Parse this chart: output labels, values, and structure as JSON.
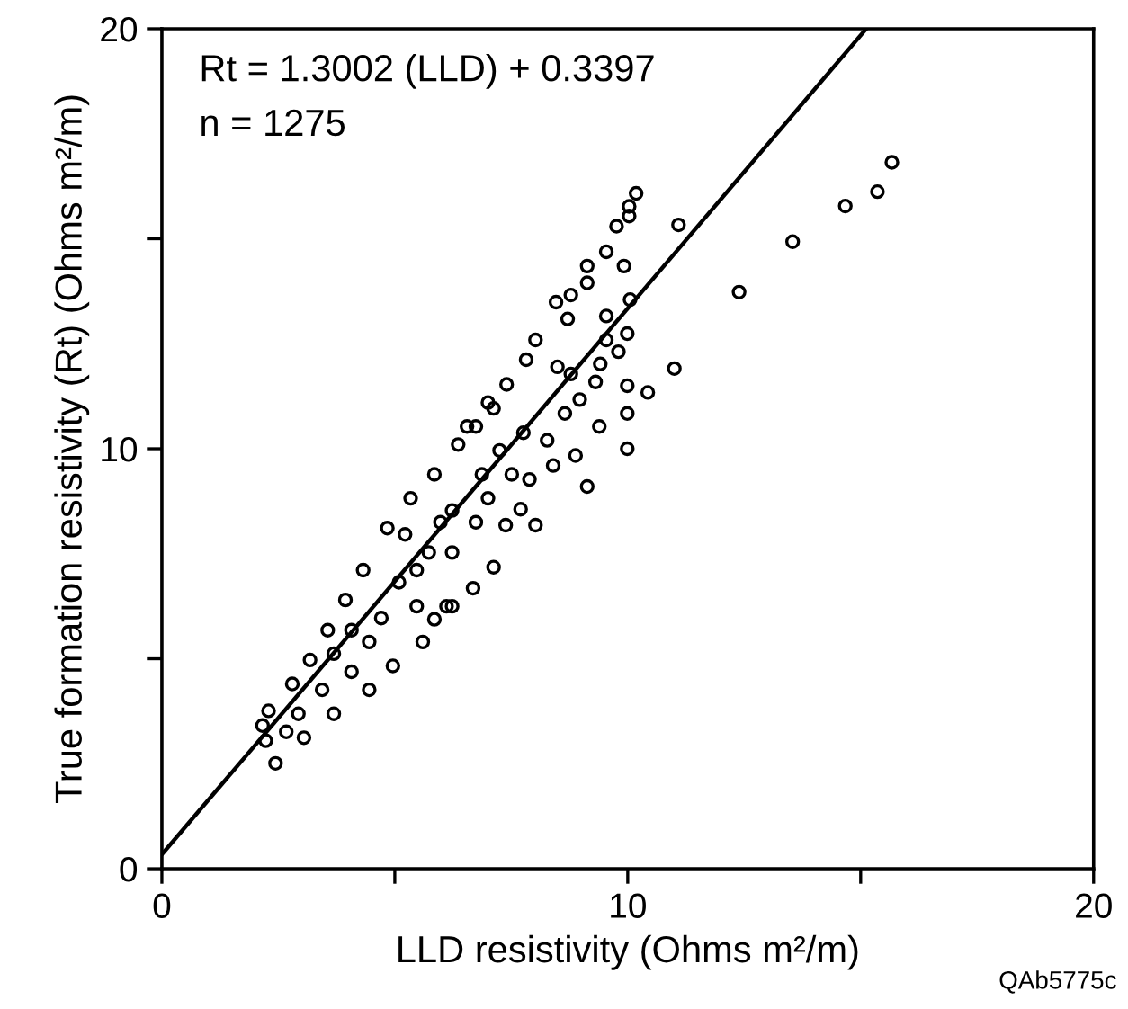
{
  "chart_data": {
    "type": "scatter",
    "xlabel": "LLD resistivity (Ohms m²/m)",
    "ylabel": "True formation resistivity (Rt) (Ohms m²/m)",
    "annotations": [
      "Rt = 1.3002 (LLD) + 0.3397",
      "n = 1275",
      "QAb5775c"
    ],
    "xlim": [
      0,
      20
    ],
    "ylim": [
      0,
      20
    ],
    "xticks": [
      0,
      {
        "value": 5,
        "label": null
      },
      10,
      {
        "value": 15,
        "label": null
      },
      20
    ],
    "yticks": [
      0,
      {
        "value": 5,
        "label": null
      },
      10,
      {
        "value": 15,
        "label": null
      },
      20
    ],
    "grid": false,
    "legend": false,
    "marker": "circle",
    "series": [
      {
        "color": "#000000",
        "x": [
          10.18,
          10.03,
          10.03,
          9.76,
          9.54,
          9.92,
          9.13,
          9.13,
          8.78,
          8.46,
          8.71,
          9.54,
          10.05,
          8.02,
          7.82,
          9.54,
          9.99,
          9.8,
          8.49,
          8.78,
          9.41,
          9.31,
          9.99,
          10.43,
          11.0,
          7.4,
          7.0,
          8.65,
          8.97,
          9.39,
          9.99,
          9.99,
          8.88,
          9.13,
          8.27,
          8.4,
          7.89,
          6.55,
          5.85,
          7.7,
          8.02,
          7.38,
          7.12,
          6.68,
          6.23,
          5.85,
          5.6,
          4.96,
          4.45,
          3.69,
          3.05,
          2.44,
          2.23,
          2.16,
          2.29,
          2.8,
          3.18,
          3.56,
          3.94,
          4.32,
          4.84,
          5.34,
          6.36,
          6.74,
          7.12,
          5.22,
          5.73,
          6.23,
          6.74,
          5.09,
          5.47,
          4.71,
          4.45,
          4.07,
          3.44,
          2.93,
          2.67,
          6.11,
          7.25,
          7.76,
          7.51,
          6.87,
          7.0,
          6.23,
          4.07,
          3.69,
          5.47,
          5.98,
          15.67,
          15.36,
          14.67,
          13.54,
          12.39,
          11.09
        ],
        "values": [
          16.08,
          15.77,
          15.54,
          15.3,
          14.69,
          14.35,
          14.35,
          13.95,
          13.66,
          13.49,
          13.09,
          13.16,
          13.55,
          12.59,
          12.12,
          12.59,
          12.74,
          12.31,
          11.95,
          11.78,
          12.02,
          11.59,
          11.5,
          11.34,
          11.91,
          11.53,
          11.1,
          10.84,
          11.17,
          10.53,
          10.84,
          10.0,
          9.84,
          9.1,
          10.2,
          9.6,
          9.27,
          10.53,
          9.39,
          8.56,
          8.18,
          8.18,
          7.18,
          6.68,
          6.25,
          5.94,
          5.4,
          4.83,
          4.26,
          3.69,
          3.12,
          2.51,
          3.05,
          3.41,
          3.76,
          4.4,
          4.97,
          5.68,
          6.4,
          7.11,
          8.11,
          8.82,
          10.1,
          10.53,
          10.96,
          7.96,
          7.53,
          7.53,
          8.25,
          6.82,
          6.25,
          5.97,
          5.4,
          4.69,
          4.26,
          3.69,
          3.26,
          6.25,
          9.96,
          10.38,
          9.39,
          9.39,
          8.82,
          8.53,
          5.68,
          5.12,
          7.11,
          8.25,
          16.82,
          16.12,
          15.78,
          14.93,
          13.73,
          15.33
        ]
      },
      {
        "type": "line",
        "color": "#000000",
        "marker": "none",
        "line_style": "solid",
        "x": [
          0,
          15.12
        ],
        "values": [
          0.34,
          20.0
        ]
      }
    ]
  }
}
